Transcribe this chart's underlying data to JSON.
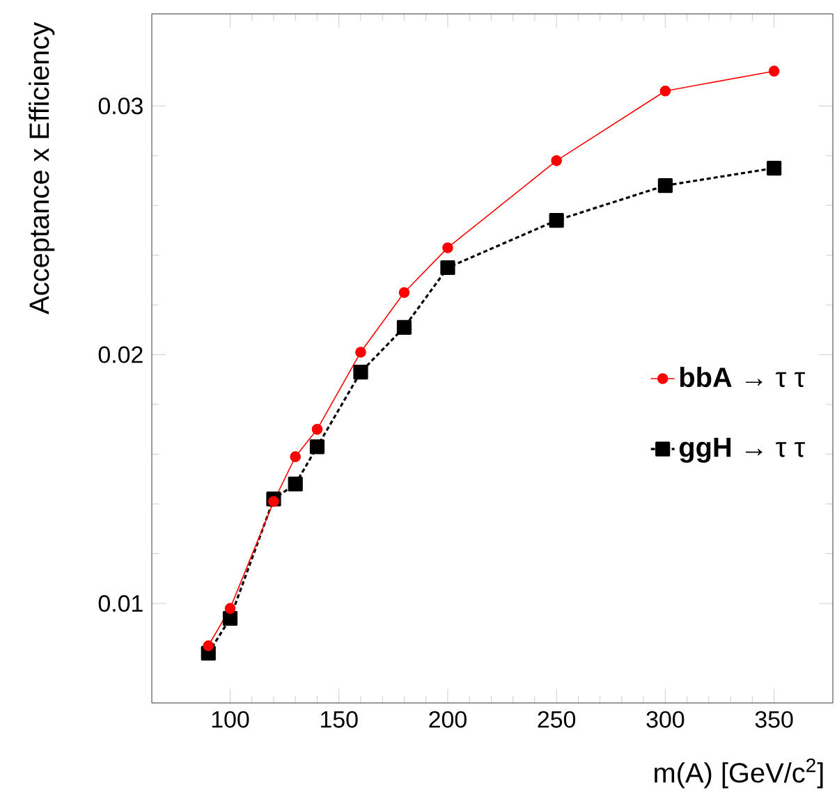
{
  "chart_data": {
    "type": "line",
    "xlabel": "m(A) [GeV/c$^{2}$]",
    "ylabel": "Acceptance x Efficiency",
    "x": [
      90,
      100,
      120,
      130,
      140,
      160,
      180,
      200,
      250,
      300,
      350
    ],
    "series": [
      {
        "name": "**bbA** → τ τ",
        "color": "#ff0000",
        "marker": "circle",
        "line_style": "solid",
        "values": [
          0.0083,
          0.0098,
          0.0141,
          0.0159,
          0.017,
          0.0201,
          0.0225,
          0.0243,
          0.0278,
          0.0306,
          0.0314
        ]
      },
      {
        "name": "**ggH** → τ τ",
        "color": "#000000",
        "marker": "square",
        "line_style": "dashed",
        "values": [
          0.008,
          0.0094,
          0.0142,
          0.0148,
          0.0163,
          0.0193,
          0.0211,
          0.0235,
          0.0254,
          0.0268,
          0.0275
        ]
      }
    ],
    "xlim": [
      64,
      377
    ],
    "ylim": [
      0.006,
      0.0337
    ],
    "xticks": [
      100,
      150,
      200,
      250,
      300,
      350
    ],
    "yticks": [
      0.01,
      0.02,
      0.03
    ],
    "grid": false,
    "legend": "right"
  }
}
